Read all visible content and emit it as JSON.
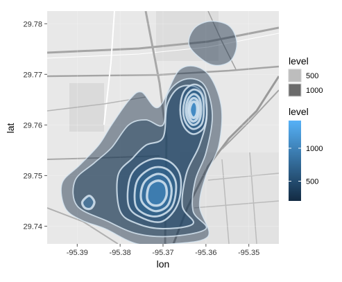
{
  "chart_data": {
    "type": "contour-density-map",
    "xlabel": "lon",
    "ylabel": "lat",
    "xlim": [
      -95.397,
      -95.343
    ],
    "ylim": [
      29.7365,
      29.7825
    ],
    "x_ticks": [
      -95.39,
      -95.38,
      -95.37,
      -95.36,
      -95.35
    ],
    "x_tick_labels": [
      "-95.39",
      "-95.38",
      "-95.37",
      "-95.36",
      "-95.35"
    ],
    "y_ticks": [
      29.74,
      29.75,
      29.76,
      29.77,
      29.78
    ],
    "y_tick_labels": [
      "29.74",
      "29.75",
      "29.76",
      "29.77",
      "29.78"
    ],
    "grid": true,
    "legend_placement": "right",
    "legends": [
      {
        "title": "level",
        "type": "size",
        "entries": [
          {
            "label": "500",
            "color": "#bdbdbd"
          },
          {
            "label": "1000",
            "color": "#6b6b6b"
          }
        ]
      },
      {
        "title": "level",
        "type": "colorbar",
        "low_color": "#132B43",
        "high_color": "#56B1F7",
        "labels": [
          "500",
          "1000"
        ],
        "values": [
          500,
          1000
        ],
        "range": [
          200,
          1420
        ]
      }
    ],
    "density_peaks": [
      {
        "lon": -95.3715,
        "lat": 29.7463,
        "level": 1300
      },
      {
        "lon": -95.3632,
        "lat": 29.7628,
        "level": 1420
      }
    ],
    "contours": [
      {
        "level": 200,
        "points": [
          [
            -95.3928,
            29.7436
          ],
          [
            -95.3935,
            29.7485
          ],
          [
            -95.3895,
            29.752
          ],
          [
            -95.385,
            29.756
          ],
          [
            -95.382,
            29.76
          ],
          [
            -95.3778,
            29.765
          ],
          [
            -95.375,
            29.7665
          ],
          [
            -95.371,
            29.7635
          ],
          [
            -95.366,
            29.771
          ],
          [
            -95.36,
            29.7705
          ],
          [
            -95.3565,
            29.764
          ],
          [
            -95.357,
            29.756
          ],
          [
            -95.36,
            29.75
          ],
          [
            -95.3615,
            29.744
          ],
          [
            -95.3595,
            29.738
          ],
          [
            -95.368,
            29.7365
          ],
          [
            -95.376,
            29.7365
          ],
          [
            -95.3835,
            29.7395
          ],
          [
            -95.389,
            29.7412
          ]
        ]
      },
      {
        "level": 200,
        "points": [
          [
            -95.3638,
            29.7755
          ],
          [
            -95.359,
            29.772
          ],
          [
            -95.3545,
            29.7725
          ],
          [
            -95.3528,
            29.776
          ],
          [
            -95.3545,
            29.7795
          ],
          [
            -95.359,
            29.7805
          ],
          [
            -95.3628,
            29.779
          ]
        ]
      },
      {
        "level": 350,
        "points": [
          [
            -95.39,
            29.744
          ],
          [
            -95.3905,
            29.749
          ],
          [
            -95.386,
            29.7525
          ],
          [
            -95.382,
            29.7555
          ],
          [
            -95.378,
            29.76
          ],
          [
            -95.374,
            29.761
          ],
          [
            -95.37,
            29.76
          ],
          [
            -95.369,
            29.766
          ],
          [
            -95.365,
            29.769
          ],
          [
            -95.3605,
            29.768
          ],
          [
            -95.3585,
            29.762
          ],
          [
            -95.36,
            29.7545
          ],
          [
            -95.3625,
            29.749
          ],
          [
            -95.363,
            29.743
          ],
          [
            -95.36,
            29.7395
          ],
          [
            -95.368,
            29.738
          ],
          [
            -95.376,
            29.7385
          ],
          [
            -95.383,
            29.741
          ]
        ]
      },
      {
        "level": 500,
        "points": [
          [
            -95.38,
            29.743
          ],
          [
            -95.3805,
            29.75
          ],
          [
            -95.377,
            29.7535
          ],
          [
            -95.374,
            29.756
          ],
          [
            -95.37,
            29.7575
          ],
          [
            -95.369,
            29.764
          ],
          [
            -95.366,
            29.7675
          ],
          [
            -95.3615,
            29.767
          ],
          [
            -95.3598,
            29.762
          ],
          [
            -95.3615,
            29.756
          ],
          [
            -95.3645,
            29.7505
          ],
          [
            -95.3655,
            29.744
          ],
          [
            -95.363,
            29.7405
          ],
          [
            -95.37,
            29.7395
          ],
          [
            -95.376,
            29.7405
          ]
        ]
      },
      {
        "level": 650,
        "points": [
          [
            -95.378,
            29.744
          ],
          [
            -95.3775,
            29.75
          ],
          [
            -95.3735,
            29.753
          ],
          [
            -95.369,
            29.753
          ],
          [
            -95.366,
            29.75
          ],
          [
            -95.3665,
            29.7445
          ],
          [
            -95.37,
            29.741
          ],
          [
            -95.3745,
            29.7415
          ]
        ]
      },
      {
        "level": 800,
        "points": [
          [
            -95.3765,
            29.7445
          ],
          [
            -95.376,
            29.749
          ],
          [
            -95.3725,
            29.7515
          ],
          [
            -95.369,
            29.7512
          ],
          [
            -95.367,
            29.7485
          ],
          [
            -95.3678,
            29.744
          ],
          [
            -95.371,
            29.742
          ],
          [
            -95.3745,
            29.7425
          ]
        ]
      },
      {
        "level": 950,
        "points": [
          [
            -95.375,
            29.745
          ],
          [
            -95.3745,
            29.7485
          ],
          [
            -95.3715,
            29.7503
          ],
          [
            -95.369,
            29.7495
          ],
          [
            -95.368,
            29.747
          ],
          [
            -95.369,
            29.744
          ],
          [
            -95.372,
            29.743
          ]
        ]
      },
      {
        "level": 1100,
        "points": [
          [
            -95.3737,
            29.7455
          ],
          [
            -95.3732,
            29.748
          ],
          [
            -95.3712,
            29.749
          ],
          [
            -95.3695,
            29.7482
          ],
          [
            -95.3692,
            29.746
          ],
          [
            -95.3705,
            29.7443
          ],
          [
            -95.3725,
            29.7442
          ]
        ]
      },
      {
        "level": 650,
        "points": [
          [
            -95.366,
            29.763
          ],
          [
            -95.3652,
            29.7665
          ],
          [
            -95.3628,
            29.768
          ],
          [
            -95.3605,
            29.7668
          ],
          [
            -95.3598,
            29.763
          ],
          [
            -95.3605,
            29.7595
          ],
          [
            -95.363,
            29.7582
          ],
          [
            -95.3652,
            29.7598
          ]
        ]
      },
      {
        "level": 800,
        "points": [
          [
            -95.3653,
            29.763
          ],
          [
            -95.3645,
            29.7658
          ],
          [
            -95.3628,
            29.767
          ],
          [
            -95.361,
            29.766
          ],
          [
            -95.3605,
            29.763
          ],
          [
            -95.361,
            29.7602
          ],
          [
            -95.363,
            29.7592
          ],
          [
            -95.3647,
            29.7605
          ]
        ]
      },
      {
        "level": 950,
        "points": [
          [
            -95.3647,
            29.763
          ],
          [
            -95.3641,
            29.7652
          ],
          [
            -95.3628,
            29.7661
          ],
          [
            -95.3615,
            29.7652
          ],
          [
            -95.3611,
            29.763
          ],
          [
            -95.3616,
            29.7608
          ],
          [
            -95.363,
            29.76
          ],
          [
            -95.3642,
            29.761
          ]
        ]
      },
      {
        "level": 1100,
        "points": [
          [
            -95.3642,
            29.763
          ],
          [
            -95.3637,
            29.7647
          ],
          [
            -95.3628,
            29.7653
          ],
          [
            -95.3619,
            29.7647
          ],
          [
            -95.3616,
            29.763
          ],
          [
            -95.362,
            29.7613
          ],
          [
            -95.363,
            29.7607
          ],
          [
            -95.3638,
            29.7614
          ]
        ]
      },
      {
        "level": 1250,
        "points": [
          [
            -95.3638,
            29.763
          ],
          [
            -95.3634,
            29.7642
          ],
          [
            -95.3628,
            29.7646
          ],
          [
            -95.3622,
            29.7642
          ],
          [
            -95.362,
            29.763
          ],
          [
            -95.3623,
            29.7618
          ],
          [
            -95.3629,
            29.7614
          ],
          [
            -95.3635,
            29.7619
          ]
        ]
      },
      {
        "level": 1000,
        "points": [
          [
            -95.3888,
            29.7448
          ],
          [
            -95.3872,
            29.746
          ],
          [
            -95.386,
            29.7448
          ],
          [
            -95.3868,
            29.7435
          ],
          [
            -95.3882,
            29.7436
          ]
        ]
      }
    ]
  }
}
